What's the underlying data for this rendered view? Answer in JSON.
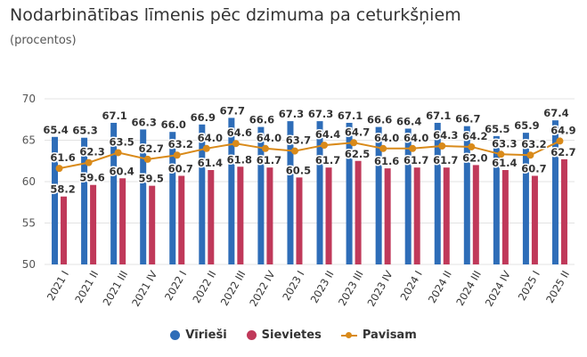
{
  "title": "Nodarbinātības līmenis pēc dzimuma pa ceturkšņiem",
  "subtitle": "(procentos)",
  "colors": {
    "men": "#2E6DB8",
    "women": "#C0395A",
    "total": "#D98A1A",
    "grid": "#e3e3e3",
    "text": "#333333"
  },
  "legend": [
    {
      "label": "Vīrieši",
      "type": "dot",
      "color": "#2E6DB8"
    },
    {
      "label": "Sievietes",
      "type": "dot",
      "color": "#C0395A"
    },
    {
      "label": "Pavisam",
      "type": "line",
      "color": "#D98A1A"
    }
  ],
  "chart_data": {
    "type": "bar",
    "categories": [
      "2021 I",
      "2021 II",
      "2021 III",
      "2021 IV",
      "2022 I",
      "2022 II",
      "2022 III",
      "2022 IV",
      "2023 I",
      "2023 II",
      "2023 III",
      "2023 IV",
      "2024 I",
      "2024 II",
      "2024 III",
      "2024 IV",
      "2025 I",
      "2025 II"
    ],
    "series": [
      {
        "name": "Vīrieši",
        "type": "bar",
        "values": [
          65.4,
          65.3,
          67.1,
          66.3,
          66.0,
          66.9,
          67.7,
          66.6,
          67.3,
          67.3,
          67.1,
          66.6,
          66.4,
          67.1,
          66.7,
          65.5,
          65.9,
          67.4
        ]
      },
      {
        "name": "Sievietes",
        "type": "bar",
        "values": [
          58.2,
          59.6,
          60.4,
          59.5,
          60.7,
          61.4,
          61.8,
          61.7,
          60.5,
          61.7,
          62.5,
          61.6,
          61.7,
          61.7,
          62.0,
          61.4,
          60.7,
          62.7
        ]
      },
      {
        "name": "Pavisam",
        "type": "line",
        "values": [
          61.6,
          62.3,
          63.5,
          62.7,
          63.2,
          64.0,
          64.6,
          64.0,
          63.7,
          64.4,
          64.7,
          64.0,
          64.0,
          64.3,
          64.2,
          63.3,
          63.2,
          64.9
        ]
      }
    ],
    "ylim": [
      50,
      70
    ],
    "yticks": [
      50,
      55,
      60,
      65,
      70
    ],
    "grid": true,
    "legend_position": "bottom"
  }
}
